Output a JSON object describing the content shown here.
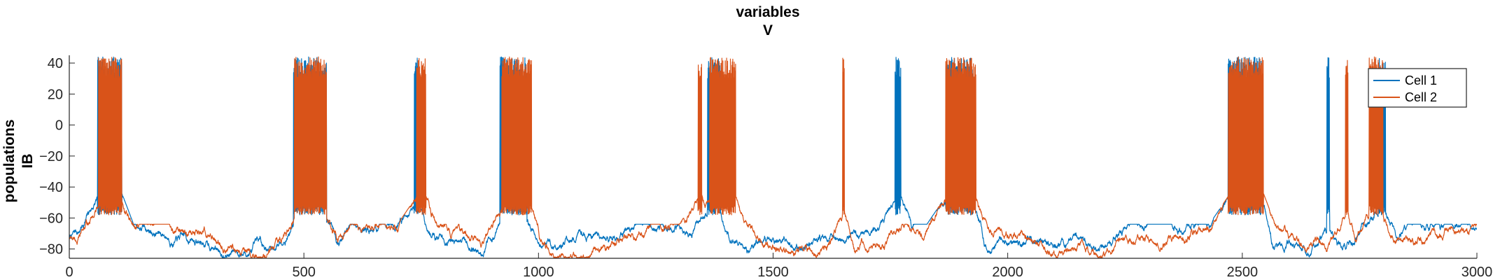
{
  "chart_data": {
    "type": "line",
    "title": [
      "variables",
      "V"
    ],
    "ylabel": [
      "populations",
      "IB"
    ],
    "xlabel": "",
    "xlim": [
      0,
      3000
    ],
    "ylim": [
      -86,
      45
    ],
    "xticks": [
      0,
      500,
      1000,
      1500,
      2000,
      2500,
      3000
    ],
    "yticks": [
      -80,
      -60,
      -40,
      -20,
      0,
      20,
      40
    ],
    "grid": false,
    "legend_position": "top-right",
    "baseline_range": [
      -82,
      -64
    ],
    "bursts": {
      "plateau": -55,
      "spike_peak": [
        30,
        44
      ],
      "spike_trough": [
        -52,
        -58
      ]
    },
    "series": [
      {
        "name": "Cell 1",
        "color": "#0072BD",
        "bursts": [
          [
            60,
            112
          ],
          [
            478,
            548
          ],
          [
            735,
            745
          ],
          [
            918,
            975
          ],
          [
            1360,
            1388
          ],
          [
            1760,
            1772
          ],
          [
            1868,
            1925
          ],
          [
            2470,
            2540
          ],
          [
            2680,
            2686
          ],
          [
            2790,
            2805
          ]
        ]
      },
      {
        "name": "Cell 2",
        "color": "#D95319",
        "bursts": [
          [
            62,
            112
          ],
          [
            480,
            548
          ],
          [
            740,
            760
          ],
          [
            922,
            985
          ],
          [
            1340,
            1348
          ],
          [
            1365,
            1420
          ],
          [
            1648,
            1652
          ],
          [
            1868,
            1932
          ],
          [
            2470,
            2545
          ],
          [
            2720,
            2725
          ],
          [
            2770,
            2800
          ]
        ]
      }
    ]
  }
}
